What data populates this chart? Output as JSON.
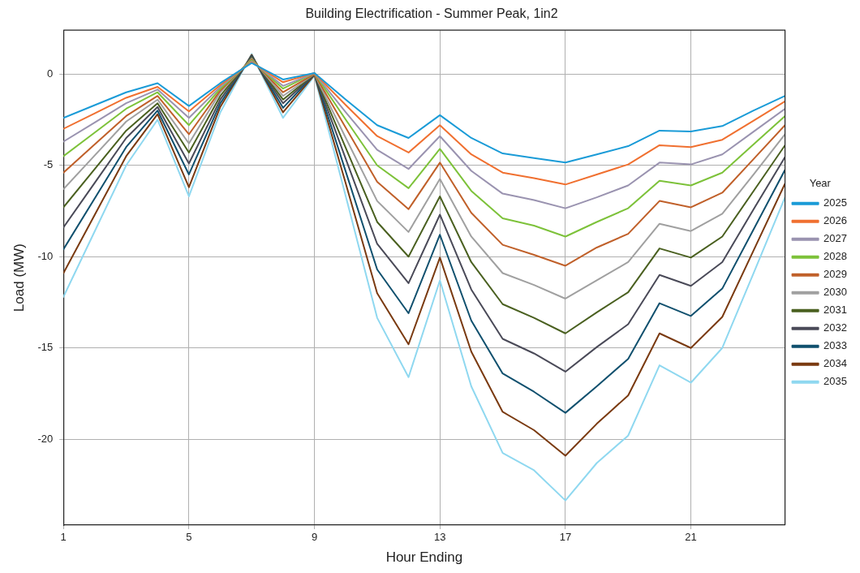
{
  "chart_data": {
    "type": "line",
    "title": "Building Electrification - Summer Peak, 1in2",
    "xlabel": "Hour Ending",
    "ylabel": "Load (MW)",
    "legend_title": "Year",
    "legend": "right",
    "grid": true,
    "marker": "none",
    "line_style": "solid",
    "x": [
      1,
      2,
      3,
      4,
      5,
      6,
      7,
      8,
      9,
      10,
      11,
      12,
      13,
      14,
      15,
      16,
      17,
      18,
      19,
      20,
      21,
      22,
      23,
      24
    ],
    "xlim": [
      1,
      24
    ],
    "xticks": [
      1,
      5,
      9,
      13,
      17,
      21
    ],
    "ylim": [
      -24.7,
      2.4
    ],
    "yticks": [
      -20,
      -15,
      -10,
      -5,
      0
    ],
    "series": [
      {
        "name": "2025",
        "color": "#1a9bd7",
        "values": [
          -2.4,
          -1.7,
          -1.0,
          -0.5,
          -1.75,
          -0.5,
          0.6,
          -0.3,
          0.05,
          -1.4,
          -2.8,
          -3.5,
          -2.25,
          -3.5,
          -4.35,
          -4.6,
          -4.85,
          -4.4,
          -3.95,
          -3.1,
          -3.15,
          -2.85,
          -2.0,
          -1.2
        ]
      },
      {
        "name": "2026",
        "color": "#f07030",
        "values": [
          -3.0,
          -2.15,
          -1.3,
          -0.7,
          -2.05,
          -0.6,
          0.65,
          -0.45,
          0.05,
          -1.7,
          -3.4,
          -4.3,
          -2.8,
          -4.4,
          -5.4,
          -5.7,
          -6.05,
          -5.5,
          -4.95,
          -3.9,
          -4.0,
          -3.6,
          -2.55,
          -1.5
        ]
      },
      {
        "name": "2027",
        "color": "#9a93b0",
        "values": [
          -3.7,
          -2.65,
          -1.6,
          -0.85,
          -2.4,
          -0.7,
          0.7,
          -0.65,
          0.05,
          -2.1,
          -4.15,
          -5.2,
          -3.4,
          -5.3,
          -6.55,
          -6.9,
          -7.35,
          -6.75,
          -6.1,
          -4.85,
          -4.95,
          -4.4,
          -3.15,
          -1.9
        ]
      },
      {
        "name": "2028",
        "color": "#7dc23a",
        "values": [
          -4.5,
          -3.2,
          -1.9,
          -1.0,
          -2.8,
          -0.8,
          0.75,
          -0.8,
          0.05,
          -2.5,
          -5.0,
          -6.25,
          -4.1,
          -6.4,
          -7.9,
          -8.3,
          -8.9,
          -8.1,
          -7.35,
          -5.85,
          -6.1,
          -5.4,
          -3.85,
          -2.3
        ]
      },
      {
        "name": "2029",
        "color": "#c0602a",
        "values": [
          -5.4,
          -3.85,
          -2.3,
          -1.2,
          -3.3,
          -0.9,
          0.8,
          -1.0,
          0,
          -2.95,
          -5.9,
          -7.4,
          -4.85,
          -7.6,
          -9.35,
          -9.9,
          -10.5,
          -9.5,
          -8.75,
          -6.95,
          -7.3,
          -6.5,
          -4.65,
          -2.8
        ]
      },
      {
        "name": "2030",
        "color": "#a0a0a0",
        "values": [
          -6.3,
          -4.45,
          -2.6,
          -1.4,
          -3.8,
          -1.0,
          0.85,
          -1.2,
          0,
          -3.5,
          -6.95,
          -8.65,
          -5.75,
          -8.9,
          -10.9,
          -11.55,
          -12.3,
          -11.3,
          -10.3,
          -8.2,
          -8.6,
          -7.65,
          -5.5,
          -3.3
        ]
      },
      {
        "name": "2031",
        "color": "#4a6020",
        "values": [
          -7.3,
          -5.2,
          -3.1,
          -1.6,
          -4.3,
          -1.2,
          0.9,
          -1.4,
          0,
          -4.05,
          -8.1,
          -10.0,
          -6.7,
          -10.3,
          -12.6,
          -13.35,
          -14.2,
          -13.05,
          -11.95,
          -9.55,
          -10.05,
          -8.9,
          -6.4,
          -3.9
        ]
      },
      {
        "name": "2032",
        "color": "#4a4a58",
        "values": [
          -8.4,
          -5.95,
          -3.5,
          -1.8,
          -4.9,
          -1.4,
          0.95,
          -1.6,
          0,
          -4.65,
          -9.3,
          -11.45,
          -7.7,
          -11.8,
          -14.5,
          -15.3,
          -16.3,
          -14.95,
          -13.7,
          -11.0,
          -11.6,
          -10.3,
          -7.4,
          -4.55
        ]
      },
      {
        "name": "2033",
        "color": "#10506e",
        "values": [
          -9.6,
          -6.8,
          -4.0,
          -2.0,
          -5.5,
          -1.6,
          1.0,
          -1.85,
          0,
          -5.35,
          -10.7,
          -13.1,
          -8.8,
          -13.5,
          -16.4,
          -17.4,
          -18.55,
          -17.1,
          -15.6,
          -12.55,
          -13.25,
          -11.75,
          -8.5,
          -5.25
        ]
      },
      {
        "name": "2034",
        "color": "#7a3a10",
        "values": [
          -10.9,
          -7.7,
          -4.5,
          -2.2,
          -6.2,
          -1.8,
          1.05,
          -2.1,
          -0.05,
          -6.0,
          -12.0,
          -14.8,
          -10.05,
          -15.2,
          -18.5,
          -19.5,
          -20.9,
          -19.15,
          -17.6,
          -14.2,
          -15.0,
          -13.3,
          -9.65,
          -6.0
        ]
      },
      {
        "name": "2035",
        "color": "#8fd8f0",
        "values": [
          -12.2,
          -8.6,
          -5.0,
          -2.5,
          -6.7,
          -2.1,
          1.1,
          -2.4,
          -0.1,
          -6.7,
          -13.35,
          -16.6,
          -11.3,
          -17.1,
          -20.75,
          -21.7,
          -23.35,
          -21.3,
          -19.8,
          -15.95,
          -16.9,
          -15.0,
          -10.9,
          -6.75
        ]
      }
    ]
  }
}
